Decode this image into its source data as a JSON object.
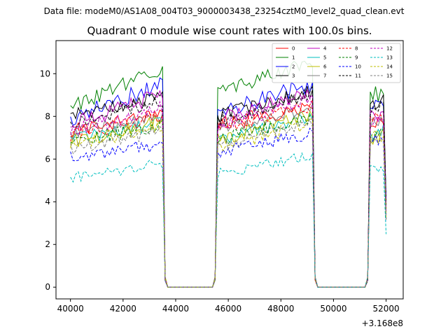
{
  "figure": {
    "suptitle": "Data file: modeM0/AS1A08_004T03_9000003438_23254cztM0_level2_quad_clean.evt"
  },
  "chart_data": {
    "type": "line",
    "title": "Quadrant 0 module wise count rates with 100.0s bins.",
    "xlabel": "",
    "ylabel": "",
    "xlim": [
      39450,
      52650
    ],
    "ylim": [
      -0.55,
      11.55
    ],
    "x_ticks": [
      40000,
      42000,
      44000,
      46000,
      48000,
      50000,
      52000
    ],
    "x_tick_labels": [
      "40000",
      "42000",
      "44000",
      "46000",
      "48000",
      "50000",
      "52000"
    ],
    "y_ticks": [
      0,
      2,
      4,
      6,
      8,
      10
    ],
    "y_tick_labels": [
      "0",
      "2",
      "4",
      "6",
      "8",
      "10"
    ],
    "offset_text": "+3.168e8",
    "legend_position": "upper-right",
    "segments": [
      {
        "start": 40000,
        "end": 43500,
        "step": 100
      },
      {
        "start": 45600,
        "end": 49200,
        "step": 100
      },
      {
        "start": 51400,
        "end": 52000,
        "step": 100
      }
    ],
    "gap_value": 0,
    "series": [
      {
        "name": "0",
        "color": "#ff0000",
        "dash": "solid",
        "level": [
          7.3,
          7.6,
          7.7
        ],
        "trend": [
          0.9,
          0.9,
          0.4
        ],
        "noise": 0.35
      },
      {
        "name": "1",
        "color": "#008000",
        "dash": "solid",
        "level": [
          8.5,
          9.2,
          9.0
        ],
        "trend": [
          1.7,
          1.3,
          0.1
        ],
        "noise": 0.4
      },
      {
        "name": "2",
        "color": "#0000ff",
        "dash": "solid",
        "level": [
          7.9,
          8.2,
          8.6
        ],
        "trend": [
          1.6,
          1.3,
          0.3
        ],
        "noise": 0.4
      },
      {
        "name": "3",
        "color": "#000000",
        "dash": "solid",
        "level": [
          8.0,
          8.0,
          8.6
        ],
        "trend": [
          0.9,
          1.2,
          0.2
        ],
        "noise": 0.35
      },
      {
        "name": "4",
        "color": "#bf00bf",
        "dash": "solid",
        "level": [
          7.6,
          7.8,
          8.0
        ],
        "trend": [
          1.4,
          1.5,
          0.3
        ],
        "noise": 0.4
      },
      {
        "name": "5",
        "color": "#00bfbf",
        "dash": "solid",
        "level": [
          6.9,
          6.9,
          7.2
        ],
        "trend": [
          0.8,
          1.1,
          0.2
        ],
        "noise": 0.3
      },
      {
        "name": "6",
        "color": "#bfbf00",
        "dash": "solid",
        "level": [
          6.8,
          6.9,
          7.0
        ],
        "trend": [
          1.0,
          1.2,
          0.1
        ],
        "noise": 0.35
      },
      {
        "name": "7",
        "color": "#808080",
        "dash": "solid",
        "level": [
          7.2,
          7.4,
          7.7
        ],
        "trend": [
          0.8,
          1.0,
          0.2
        ],
        "noise": 0.3
      },
      {
        "name": "8",
        "color": "#ff0000",
        "dash": "dashed",
        "level": [
          7.1,
          7.5,
          7.8
        ],
        "trend": [
          0.9,
          1.0,
          0.2
        ],
        "noise": 0.35
      },
      {
        "name": "9",
        "color": "#008000",
        "dash": "dashed",
        "level": [
          6.8,
          6.9,
          7.0
        ],
        "trend": [
          0.8,
          1.0,
          0.2
        ],
        "noise": 0.35
      },
      {
        "name": "10",
        "color": "#0000ff",
        "dash": "dashed",
        "level": [
          6.1,
          6.3,
          6.8
        ],
        "trend": [
          0.6,
          0.9,
          0.1
        ],
        "noise": 0.3
      },
      {
        "name": "11",
        "color": "#000000",
        "dash": "dashed",
        "level": [
          7.6,
          7.8,
          8.2
        ],
        "trend": [
          1.2,
          1.3,
          0.3
        ],
        "noise": 0.35
      },
      {
        "name": "12",
        "color": "#bf00bf",
        "dash": "dashed",
        "level": [
          7.3,
          7.6,
          7.8
        ],
        "trend": [
          1.1,
          1.2,
          0.2
        ],
        "noise": 0.35
      },
      {
        "name": "13",
        "color": "#00bfbf",
        "dash": "dashed",
        "level": [
          5.1,
          5.3,
          5.6
        ],
        "trend": [
          0.7,
          0.9,
          -0.1
        ],
        "noise": 0.25
      },
      {
        "name": "14",
        "color": "#bfbf00",
        "dash": "dashed",
        "level": [
          6.6,
          6.6,
          7.0
        ],
        "trend": [
          1.0,
          1.1,
          0.1
        ],
        "noise": 0.35
      },
      {
        "name": "15",
        "color": "#808080",
        "dash": "dashed",
        "level": [
          6.5,
          6.6,
          6.9
        ],
        "trend": [
          0.8,
          1.0,
          0.2
        ],
        "noise": 0.3
      }
    ]
  }
}
